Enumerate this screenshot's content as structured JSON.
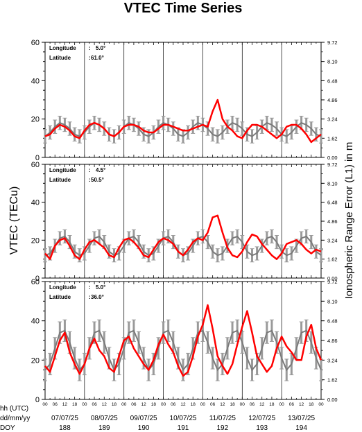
{
  "chart_data": {
    "type": "line",
    "title": "VTEC Time Series",
    "ylabel": "VTEC (TECu)",
    "ylabel_right": "Ionospheric Range Error (L1) in m",
    "ylim": [
      0,
      60
    ],
    "left_ticks": [
      "0",
      "20",
      "40",
      "60"
    ],
    "right_ticks": [
      "0.00",
      "1.62",
      "3.24",
      "4.86",
      "6.48",
      "8.10",
      "9.72"
    ],
    "x_hours": [
      "00",
      "06",
      "12",
      "18"
    ],
    "row_labels": [
      "hh (UTC)",
      "dd/mm/yy",
      "DOY"
    ],
    "days": [
      {
        "date": "07/07/25",
        "doy": "188"
      },
      {
        "date": "08/07/25",
        "doy": "189"
      },
      {
        "date": "09/07/25",
        "doy": "190"
      },
      {
        "date": "10/07/25",
        "doy": "191"
      },
      {
        "date": "11/07/25",
        "doy": "192"
      },
      {
        "date": "12/07/25",
        "doy": "193"
      },
      {
        "date": "13/07/25",
        "doy": "194"
      }
    ],
    "panels": [
      {
        "lon_label": "Longitude",
        "lon_value": "5.0°",
        "lat_label": "Latitude",
        "lat_value": "61.0°",
        "hours": [
          0,
          3,
          6,
          9,
          12,
          15,
          18,
          21,
          24,
          27,
          30,
          33,
          36,
          39,
          42,
          45,
          48,
          51,
          54,
          57,
          60,
          63,
          66,
          69,
          72,
          75,
          78,
          81,
          84,
          87,
          90,
          93,
          96,
          99,
          102,
          105,
          108,
          111,
          114,
          117,
          120,
          123,
          126,
          129,
          132,
          135,
          138,
          141,
          144,
          147,
          150,
          153,
          156,
          159,
          162,
          165,
          168
        ],
        "observed": [
          11,
          12,
          15,
          17,
          16,
          14,
          11,
          10,
          14,
          17,
          18,
          17,
          15,
          12,
          11,
          13,
          16,
          17,
          17,
          16,
          14,
          13,
          13,
          15,
          17,
          17,
          16,
          15,
          14,
          14,
          15,
          16,
          17,
          16,
          24,
          30,
          20,
          16,
          14,
          11,
          10,
          14,
          17,
          17,
          16,
          14,
          12,
          10,
          12,
          16,
          17,
          17,
          15,
          12,
          8,
          10,
          12
        ],
        "model": [
          11,
          13,
          16,
          18,
          17,
          15,
          12,
          11,
          13,
          16,
          18,
          17,
          15,
          12,
          11,
          13,
          16,
          18,
          17,
          15,
          12,
          11,
          13,
          16,
          18,
          17,
          15,
          12,
          11,
          13,
          16,
          18,
          17,
          15,
          12,
          11,
          13,
          16,
          18,
          17,
          15,
          12,
          11,
          13,
          16,
          18,
          17,
          15,
          12,
          11,
          13,
          16,
          18,
          17,
          15,
          12,
          11
        ],
        "spread": 3.5
      },
      {
        "lon_label": "Longitude",
        "lon_value": "4.5°",
        "lat_label": "Latitude",
        "lat_value": "50.5°",
        "hours": [
          0,
          3,
          6,
          9,
          12,
          15,
          18,
          21,
          24,
          27,
          30,
          33,
          36,
          39,
          42,
          45,
          48,
          51,
          54,
          57,
          60,
          63,
          66,
          69,
          72,
          75,
          78,
          81,
          84,
          87,
          90,
          93,
          96,
          99,
          102,
          105,
          108,
          111,
          114,
          117,
          120,
          123,
          126,
          129,
          132,
          135,
          138,
          141,
          144,
          147,
          150,
          153,
          156,
          159,
          162,
          165,
          168
        ],
        "observed": [
          13,
          10,
          17,
          20,
          21,
          17,
          12,
          10,
          15,
          19,
          20,
          18,
          16,
          12,
          11,
          16,
          20,
          21,
          19,
          16,
          12,
          11,
          15,
          19,
          21,
          20,
          18,
          14,
          12,
          15,
          19,
          21,
          20,
          24,
          32,
          33,
          24,
          16,
          12,
          11,
          14,
          19,
          23,
          22,
          18,
          15,
          12,
          10,
          13,
          18,
          19,
          20,
          18,
          15,
          13,
          15,
          14
        ],
        "model": [
          12,
          13,
          17,
          21,
          22,
          19,
          14,
          12,
          13,
          17,
          21,
          22,
          19,
          14,
          12,
          13,
          17,
          21,
          22,
          19,
          14,
          12,
          13,
          17,
          21,
          22,
          19,
          14,
          12,
          13,
          17,
          21,
          22,
          19,
          14,
          12,
          13,
          17,
          21,
          22,
          19,
          14,
          12,
          13,
          17,
          21,
          22,
          19,
          14,
          12,
          13,
          17,
          21,
          22,
          19,
          14,
          12
        ],
        "spread": 3.5
      },
      {
        "lon_label": "Longitude",
        "lon_value": "5.0°",
        "lat_label": "Latitude",
        "lat_value": "36.0°",
        "hours": [
          0,
          3,
          6,
          9,
          12,
          15,
          18,
          21,
          24,
          27,
          30,
          33,
          36,
          39,
          42,
          45,
          48,
          51,
          54,
          57,
          60,
          63,
          66,
          69,
          72,
          75,
          78,
          81,
          84,
          87,
          90,
          93,
          96,
          99,
          102,
          105,
          108,
          111,
          114,
          117,
          120,
          123,
          126,
          129,
          132,
          135,
          138,
          141,
          144,
          147,
          150,
          153,
          156,
          159,
          162,
          165,
          168
        ],
        "observed": [
          17,
          14,
          22,
          30,
          34,
          24,
          18,
          13,
          18,
          26,
          31,
          25,
          22,
          16,
          14,
          22,
          30,
          32,
          26,
          22,
          18,
          15,
          20,
          28,
          33,
          28,
          24,
          17,
          12,
          14,
          22,
          32,
          38,
          48,
          36,
          22,
          17,
          13,
          18,
          28,
          37,
          45,
          34,
          22,
          18,
          14,
          17,
          26,
          32,
          27,
          24,
          20,
          20,
          32,
          38,
          26,
          20
        ],
        "model": [
          15,
          18,
          26,
          34,
          35,
          29,
          21,
          15,
          18,
          26,
          34,
          35,
          29,
          21,
          15,
          18,
          26,
          34,
          35,
          29,
          21,
          15,
          18,
          26,
          34,
          35,
          29,
          21,
          15,
          18,
          26,
          34,
          35,
          29,
          21,
          15,
          18,
          26,
          34,
          35,
          29,
          21,
          15,
          18,
          26,
          34,
          35,
          29,
          21,
          15,
          18,
          26,
          34,
          35,
          29,
          21,
          15
        ],
        "spread": 5.5
      }
    ],
    "colors": {
      "observed": "#ff0000",
      "model": "#7a7a7a",
      "errorbar": "#9a9a9a",
      "axis": "#000000"
    }
  }
}
